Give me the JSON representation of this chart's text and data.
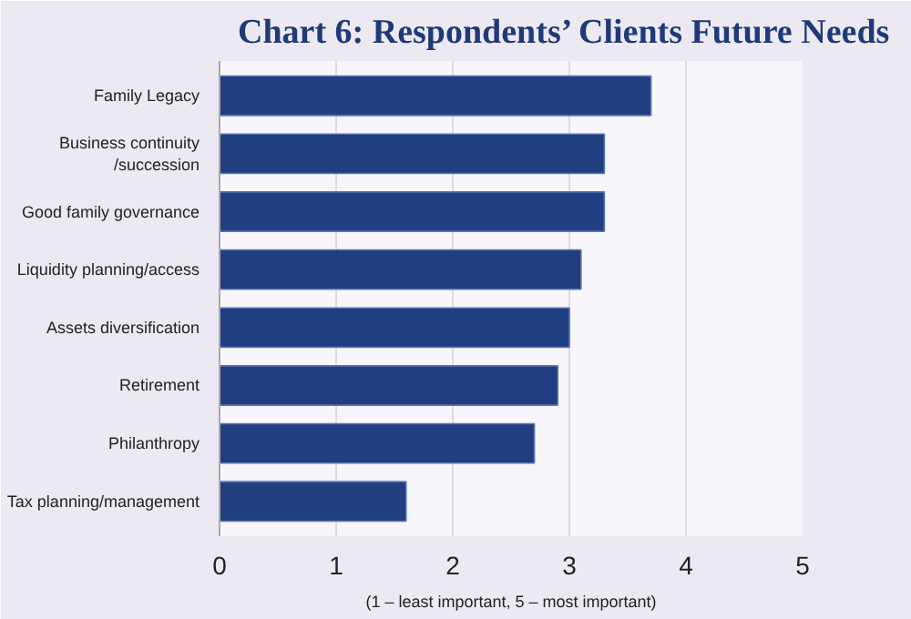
{
  "chart_data": {
    "type": "bar",
    "orientation": "horizontal",
    "title": "Chart 6: Respondents’ Clients Future Needs",
    "categories": [
      "Family Legacy",
      "Business continuity\n/succession",
      "Good family governance",
      "Liquidity planning/access",
      "Assets diversification",
      "Retirement",
      "Philanthropy",
      "Tax planning/management"
    ],
    "values": [
      3.7,
      3.3,
      3.3,
      3.1,
      3.0,
      2.9,
      2.7,
      1.6
    ],
    "color": "#203e80",
    "xlim": [
      0,
      5
    ],
    "xticks": [
      0,
      1,
      2,
      3,
      4,
      5
    ],
    "grid": "x",
    "annotations": [
      "(1 – least important, 5 – most important)"
    ]
  }
}
